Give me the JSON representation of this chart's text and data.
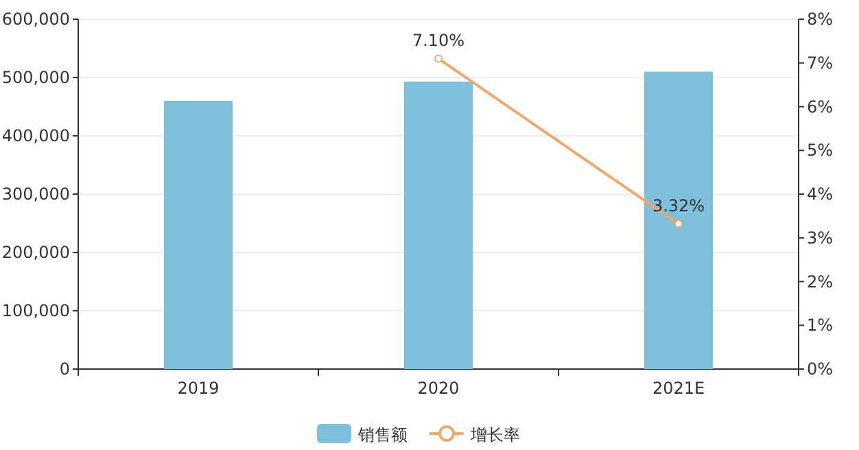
{
  "chart_data": {
    "type": "bar",
    "categories": [
      "2019",
      "2020",
      "2021E"
    ],
    "series": [
      {
        "name": "销售额",
        "color": "#7ebfdb",
        "values": [
          460000,
          493000,
          510000
        ]
      },
      {
        "name": "增长率",
        "type": "line",
        "axis": "y2",
        "color": "#f0a86a",
        "values": [
          null,
          7.1,
          3.32
        ],
        "value_labels": [
          null,
          "7.10%",
          "3.32%"
        ]
      }
    ],
    "ylim": [
      0,
      600000
    ],
    "yticks": [
      {
        "value": 0,
        "label": "0"
      },
      {
        "value": 100000,
        "label": "100,000"
      },
      {
        "value": 200000,
        "label": "200,000"
      },
      {
        "value": 300000,
        "label": "300,000"
      },
      {
        "value": 400000,
        "label": "400,000"
      },
      {
        "value": 500000,
        "label": "500,000"
      },
      {
        "value": 600000,
        "label": "600,000"
      }
    ],
    "y2lim": [
      0,
      8
    ],
    "y2ticks": [
      {
        "value": 0,
        "label": "0%"
      },
      {
        "value": 1,
        "label": "1%"
      },
      {
        "value": 2,
        "label": "2%"
      },
      {
        "value": 3,
        "label": "3%"
      },
      {
        "value": 4,
        "label": "4%"
      },
      {
        "value": 5,
        "label": "5%"
      },
      {
        "value": 6,
        "label": "6%"
      },
      {
        "value": 7,
        "label": "7%"
      },
      {
        "value": 8,
        "label": "8%"
      }
    ],
    "grid": "y",
    "legend": "bottom",
    "marker": "circle"
  }
}
